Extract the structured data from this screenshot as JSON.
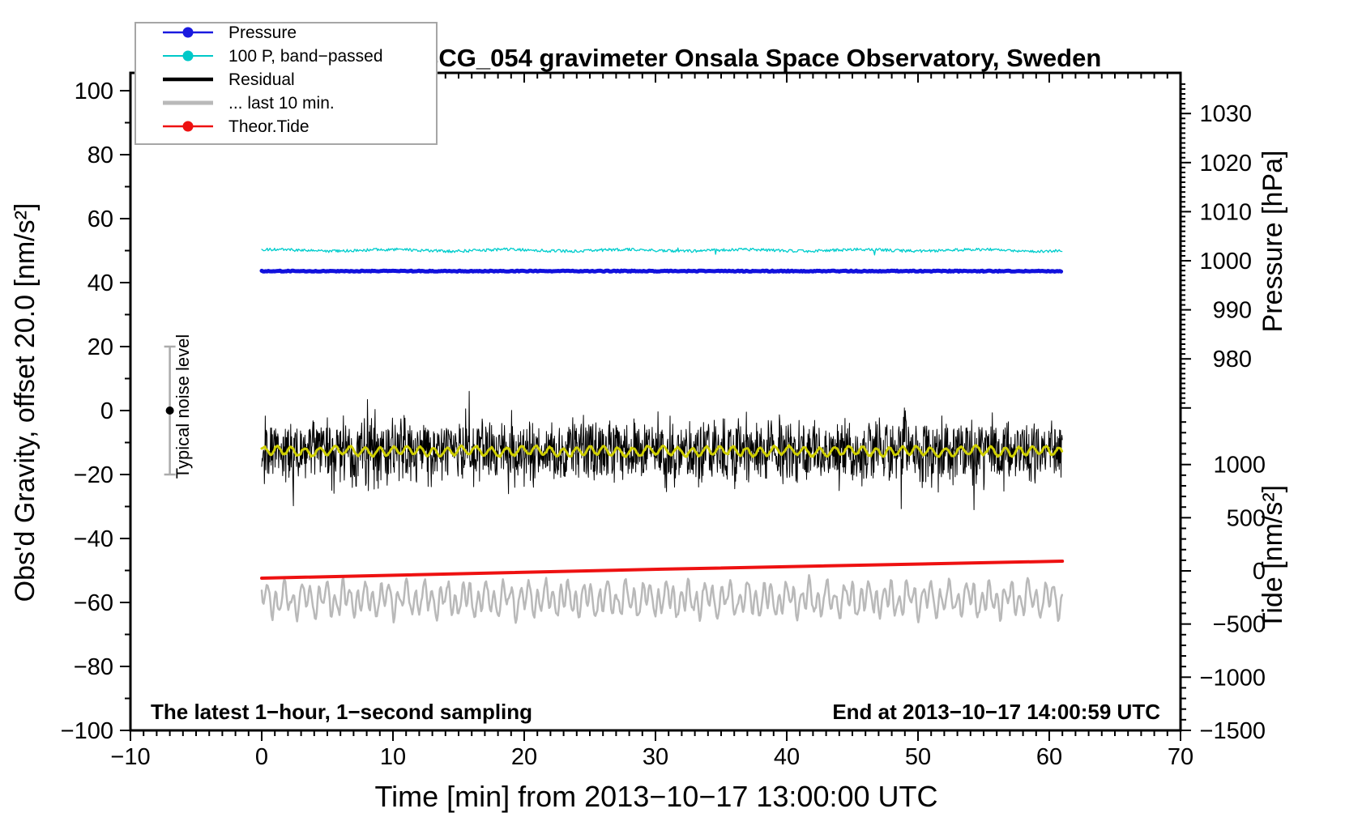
{
  "title": "SCG_054 gravimeter Onsala Space Observatory, Sweden",
  "annotations": {
    "sampling_note": "The latest 1−hour, 1−second sampling",
    "end_note": "End at 2013−10−17 14:00:59 UTC",
    "noise_label": "Typical noise level"
  },
  "legend": {
    "items": [
      {
        "label": "Pressure",
        "color": "#1a1adf",
        "marker": true,
        "linewidth": 2.5
      },
      {
        "label": "100 P, band−passed",
        "color": "#00c8c8",
        "marker": true,
        "linewidth": 2
      },
      {
        "label": "Residual",
        "color": "#000000",
        "marker": false,
        "linewidth": 4.5
      },
      {
        "label": "... last 10 min.",
        "color": "#b9b9b9",
        "marker": false,
        "linewidth": 5
      },
      {
        "label": "Theor.Tide",
        "color": "#ee1111",
        "marker": true,
        "linewidth": 2.5
      }
    ]
  },
  "axes": {
    "x": {
      "label": "Time [min] from 2013−10−17 13:00:00 UTC",
      "min": -10,
      "max": 70,
      "major_ticks": [
        -10,
        0,
        10,
        20,
        30,
        40,
        50,
        60,
        70
      ],
      "minor_step": 1
    },
    "y_left": {
      "label": "Obs'd Gravity, offset 20.0 [nm/s²]",
      "min": -100,
      "max": 100,
      "major_ticks": [
        100,
        80,
        60,
        40,
        20,
        0,
        -20,
        -40,
        -60,
        -80,
        -100
      ],
      "minor_step": 10
    },
    "y_right_pressure": {
      "label": "Pressure [hPa]",
      "labeled_ticks": [
        1030,
        1020,
        1010,
        1000,
        990,
        980
      ],
      "minor_step": 1,
      "top_value": 1036,
      "bottom_value": 970
    },
    "y_right_tide": {
      "label": "Tide [nm/s²]",
      "labeled_ticks": [
        1000,
        500,
        0,
        -500,
        -1000,
        -1500
      ],
      "minor_step": 100,
      "top_value": 1400,
      "bottom_value": -1500
    }
  },
  "chart_data": {
    "type": "line",
    "time_minutes": {
      "start": 0,
      "end": 61
    },
    "grid": "off",
    "legend_position": "top-left",
    "series": [
      {
        "name": "Pressure",
        "color": "#1111dd",
        "linewidth": 5,
        "left_axis_mean": 43.6,
        "pressure_hpa": 998,
        "shape": "flat",
        "jitter": 0.15
      },
      {
        "name": "100 P, band−passed",
        "color": "#00cdcd",
        "linewidth": 1.3,
        "left_axis_mean": 50.1,
        "jitter": 0.7
      },
      {
        "name": "Residual",
        "color": "#000000",
        "linewidth": 1,
        "left_axis_mean": -12.7,
        "noise_halfwidth": 10,
        "spike_halfwidth": 20
      },
      {
        "name": "Residual smoothed (unlabeled)",
        "color": "#cfcf00",
        "linewidth": 3,
        "left_axis_mean": -12.7,
        "wiggle_amplitude": 1.3
      },
      {
        "name": "... last 10 min.",
        "color": "#b9b9b9",
        "linewidth": 2.5,
        "left_axis_mean": -59,
        "wiggle_amplitude": 7
      },
      {
        "name": "Theor.Tide",
        "color": "#ee1111",
        "linewidth": 4,
        "left_axis_start": -52.4,
        "left_axis_end": -47.1,
        "tide_axis_start_nms2": -69,
        "tide_axis_end_nms2": 91
      }
    ],
    "noise_errorbar": {
      "t_minutes": -7,
      "center": 0,
      "halfwidth": 20
    }
  }
}
